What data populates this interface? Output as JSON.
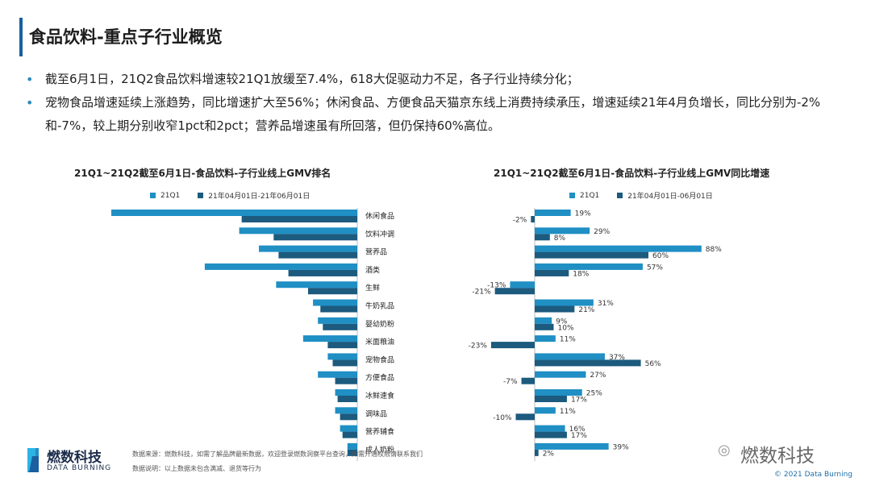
{
  "page": {
    "title": "食品饮料-重点子行业概览",
    "bullets": [
      "截至6月1日，21Q2食品饮料增速较21Q1放缓至7.4%，618大促驱动力不足，各子行业持续分化；",
      "宠物食品增速延续上涨趋势，同比增速扩大至56%；休闲食品、方便食品天猫京东线上消费持续承压，增速延续21年4月负增长，同比分别为-2%和-7%，较上期分别收窄1pct和2pct；营养品增速虽有所回落，但仍保持60%高位。"
    ]
  },
  "colors": {
    "q1": "#1f8fc4",
    "q2": "#1c5a7e",
    "accent": "#1a5fa0"
  },
  "chart_data": [
    {
      "type": "bar",
      "orientation": "horizontal",
      "title": "21Q1~21Q2截至6月1日-食品饮料-子行业线上GMV排名",
      "legend": [
        "21Q1",
        "21年04月01日-21年06月01日"
      ],
      "categories": [
        "休闲食品",
        "饮料冲调",
        "营养品",
        "酒类",
        "生鲜",
        "牛奶乳品",
        "婴幼奶粉",
        "米面粮油",
        "宠物食品",
        "方便食品",
        "冰鲜速食",
        "调味品",
        "营养辅食",
        "成人奶粉"
      ],
      "series": [
        {
          "name": "21Q1",
          "values": [
            100,
            48,
            40,
            62,
            33,
            18,
            16,
            22,
            12,
            16,
            9,
            9,
            7,
            4
          ]
        },
        {
          "name": "21年04月01日-21年06月01日",
          "values": [
            47,
            34,
            32,
            28,
            20,
            15,
            14,
            12,
            10,
            9,
            8,
            7,
            6,
            4
          ]
        }
      ],
      "note": "relative GMV scale, no axis shown"
    },
    {
      "type": "bar",
      "orientation": "horizontal",
      "title": "21Q1~21Q2截至6月1日-食品饮料-子行业线上GMV同比增速",
      "legend": [
        "21Q1",
        "21年04月01日-06月01日"
      ],
      "categories": [
        "休闲食品",
        "饮料冲调",
        "营养品",
        "酒类",
        "生鲜",
        "牛奶乳品",
        "婴幼奶粉",
        "米面粮油",
        "宠物食品",
        "方便食品",
        "冰鲜速食",
        "调味品",
        "营养辅食",
        "成人奶粉"
      ],
      "series": [
        {
          "name": "21Q1",
          "values": [
            19,
            29,
            88,
            57,
            -13,
            31,
            9,
            11,
            37,
            27,
            25,
            11,
            16,
            39
          ],
          "labels": [
            "19%",
            "29%",
            "88%",
            "57%",
            "-13%",
            "31%",
            "9%",
            "11%",
            "37%",
            "27%",
            "25%",
            "11%",
            "16%",
            "39%"
          ]
        },
        {
          "name": "21年04月01日-06月01日",
          "values": [
            -2,
            8,
            60,
            18,
            -21,
            21,
            10,
            -23,
            56,
            -7,
            17,
            -10,
            17,
            2
          ],
          "labels": [
            "-2%",
            "8%",
            "60%",
            "18%",
            "-21%",
            "21%",
            "10%",
            "-23%",
            "56%",
            "-7%",
            "17%",
            "-10%",
            "17%",
            "2%"
          ]
        }
      ],
      "unit": "%"
    }
  ],
  "footer": {
    "logo_cn": "燃数科技",
    "logo_en": "DATA BURNING",
    "source": "数据来源：燃数科技，如需了解品牌最新数据，欢迎登录燃数洞察平台查询，如需开通权限请联系我们",
    "note": "数据说明：以上数据未包含满减、退货等行为",
    "watermark": "燃数科技",
    "copyright": "© 2021 Data Burning"
  }
}
